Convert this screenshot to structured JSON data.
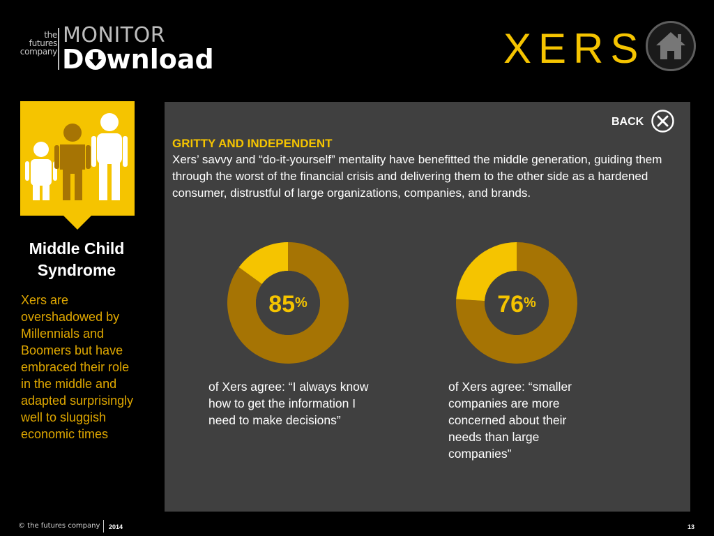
{
  "header": {
    "brand_small": "the futures company",
    "brand_monitor": "MONITOR",
    "brand_download_pre": "D",
    "brand_download_post": "wnload",
    "section_title": "XERS",
    "home_icon": "home-icon"
  },
  "sidebar": {
    "heading": "Middle Child Syndrome",
    "body": "Xers are overshadowed by Millennials and Boomers but have embraced their role in the middle and adapted surprisingly well to sluggish economic times",
    "icon": "family-icon"
  },
  "panel": {
    "back_label": "BACK",
    "close_icon": "close-icon",
    "heading": "GRITTY AND INDEPENDENT",
    "body": "Xers’ savvy and “do-it-yourself” mentality have benefitted the middle generation, guiding them through the worst of the financial crisis and delivering them to the other side as a hardened consumer, distrustful of large organizations, companies, and brands."
  },
  "stats": [
    {
      "value": "85",
      "unit": "%",
      "caption": "of Xers agree: “I always know how to get the information I need to make decisions”"
    },
    {
      "value": "76",
      "unit": "%",
      "caption": "of Xers agree: “smaller companies are more concerned about their needs than large companies”"
    }
  ],
  "chart_data": [
    {
      "type": "pie",
      "values": [
        85,
        15
      ],
      "colors": [
        "#a67404",
        "#f5c400"
      ]
    },
    {
      "type": "pie",
      "values": [
        76,
        24
      ],
      "colors": [
        "#a67404",
        "#f5c400"
      ]
    }
  ],
  "footer": {
    "copyright": "© the futures company",
    "year": "2014",
    "page": "13"
  },
  "colors": {
    "accent": "#f5c400",
    "dark_accent": "#a67404",
    "panel": "#404040"
  }
}
